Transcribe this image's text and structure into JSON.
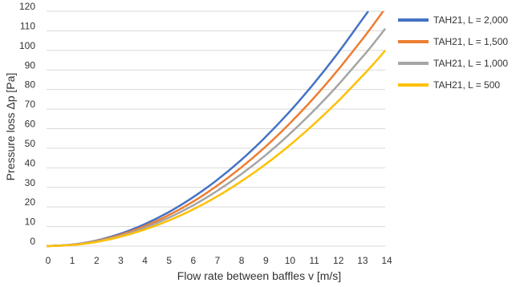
{
  "chart_data": {
    "type": "line",
    "xlabel": "Flow rate between baffles v [m/s]",
    "ylabel": "Pressure loss Δp [Pa]",
    "xlim": [
      0,
      14
    ],
    "ylim": [
      0,
      120
    ],
    "x_ticks": [
      "0",
      "1",
      "2",
      "3",
      "4",
      "5",
      "6",
      "7",
      "8",
      "9",
      "10",
      "11",
      "12",
      "13",
      "14"
    ],
    "y_ticks": [
      "0",
      "10",
      "20",
      "30",
      "40",
      "50",
      "60",
      "70",
      "80",
      "90",
      "100",
      "110",
      "120"
    ],
    "grid": "horizontal",
    "legend_position": "right",
    "x": [
      0,
      1,
      2,
      3,
      4,
      5,
      6,
      7,
      8,
      9,
      10,
      11,
      12,
      13,
      13.3,
      13.7,
      14
    ],
    "series": [
      {
        "name": "TAH21, L = 2,000",
        "color": "#4472C4",
        "values": [
          0,
          0.7,
          2.7,
          6.1,
          10.9,
          17.0,
          24.5,
          33.3,
          43.5,
          55.1,
          68.0,
          82.3,
          97.9,
          114.9,
          120.0,
          null,
          null
        ]
      },
      {
        "name": "TAH21, L = 1,500",
        "color": "#ED7D31",
        "values": [
          0,
          0.6,
          2.5,
          5.6,
          9.9,
          15.5,
          22.3,
          30.4,
          39.7,
          50.2,
          62.0,
          75.0,
          89.3,
          104.8,
          109.6,
          116.3,
          121.5
        ]
      },
      {
        "name": "TAH21, L = 1,000",
        "color": "#A5A5A5",
        "values": [
          0,
          0.6,
          2.3,
          5.1,
          9.1,
          14.2,
          20.4,
          27.8,
          36.3,
          45.9,
          56.7,
          68.6,
          81.6,
          95.8,
          100.1,
          106.3,
          111.1
        ]
      },
      {
        "name": "TAH21, L = 500",
        "color": "#FFC000",
        "values": [
          0,
          0.5,
          2.0,
          4.6,
          8.2,
          12.8,
          18.4,
          25.0,
          32.7,
          41.3,
          51.0,
          61.7,
          73.4,
          86.2,
          90.1,
          95.6,
          100.0
        ]
      }
    ]
  }
}
